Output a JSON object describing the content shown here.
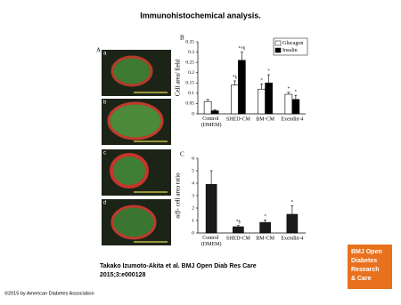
{
  "title": "Immunohistochemical analysis.",
  "images": {
    "panel": "A",
    "labels": [
      "a",
      "b",
      "c",
      "d"
    ]
  },
  "chart_data": [
    {
      "type": "bar",
      "panel": "B",
      "ylabel": "Cell area/ field",
      "categories": [
        "Control (DMEM)",
        "SHED-CM",
        "BM-CM",
        "Exendin-4"
      ],
      "ylim": [
        0,
        0.35
      ],
      "yticks": [
        0,
        0.05,
        0.1,
        0.15,
        0.2,
        0.25,
        0.3,
        0.35
      ],
      "legend": "top-right",
      "series": [
        {
          "name": "Glucagon",
          "color": "#ffffff",
          "values": [
            0.06,
            0.14,
            0.12,
            0.095
          ],
          "errors": [
            0.01,
            0.02,
            0.025,
            0.01
          ],
          "annotations": [
            null,
            "*§",
            "*",
            "*"
          ]
        },
        {
          "name": "Insulin",
          "color": "#000000",
          "values": [
            0.015,
            0.26,
            0.15,
            0.07
          ],
          "errors": [
            0.005,
            0.04,
            0.04,
            0.02
          ],
          "annotations": [
            null,
            "*†§",
            "*",
            "*"
          ]
        }
      ]
    },
    {
      "type": "bar",
      "panel": "C",
      "ylabel": "α/β- cell area ratio",
      "categories": [
        "Control (DMEM)",
        "SHED-CM",
        "BM-CM",
        "Exendin-4"
      ],
      "ylim": [
        0,
        6
      ],
      "yticks": [
        0,
        1,
        2,
        3,
        4,
        5,
        6
      ],
      "color": "#1a1a1a",
      "values": [
        3.9,
        0.5,
        0.85,
        1.5
      ],
      "errors": [
        1.1,
        0.1,
        0.2,
        0.7
      ],
      "annotations": [
        null,
        "*§",
        "*",
        "*"
      ]
    }
  ],
  "citation": [
    "Takako Izumoto-Akita et al. BMJ Open Diab Res Care",
    "2015;3:e000128"
  ],
  "copyright": "©2015 by American Diabetes Association",
  "logo": [
    "BMJ Open",
    "Diabetes",
    "Research",
    "& Care"
  ]
}
